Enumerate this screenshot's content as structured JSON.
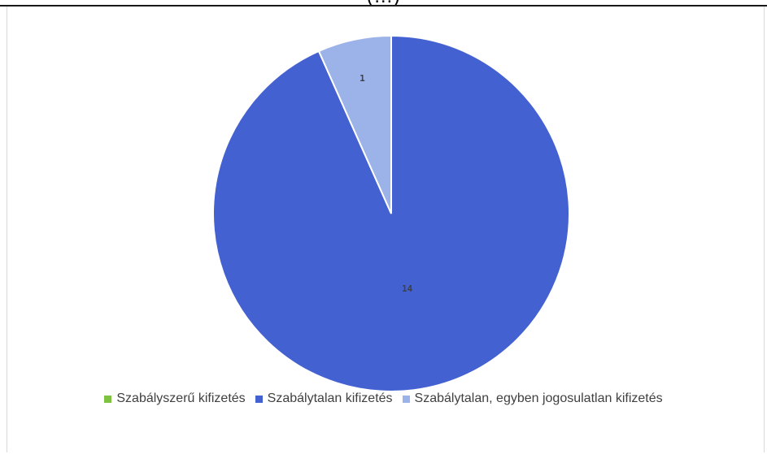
{
  "cut_title": "(…)",
  "chart_data": {
    "type": "pie",
    "title": "",
    "categories": [
      "Szabályszerű kifizetés",
      "Szabálytalan kifizetés",
      "Szabálytalan, egyben jogosulatlan kifizetés"
    ],
    "values": [
      0,
      14,
      1
    ],
    "data_labels": [
      "",
      "14",
      "1"
    ],
    "colors": [
      "#7dc241",
      "#4361d0",
      "#9cb3e9"
    ],
    "start_angle_deg": 0,
    "direction": "clockwise",
    "legend_position": "bottom"
  }
}
